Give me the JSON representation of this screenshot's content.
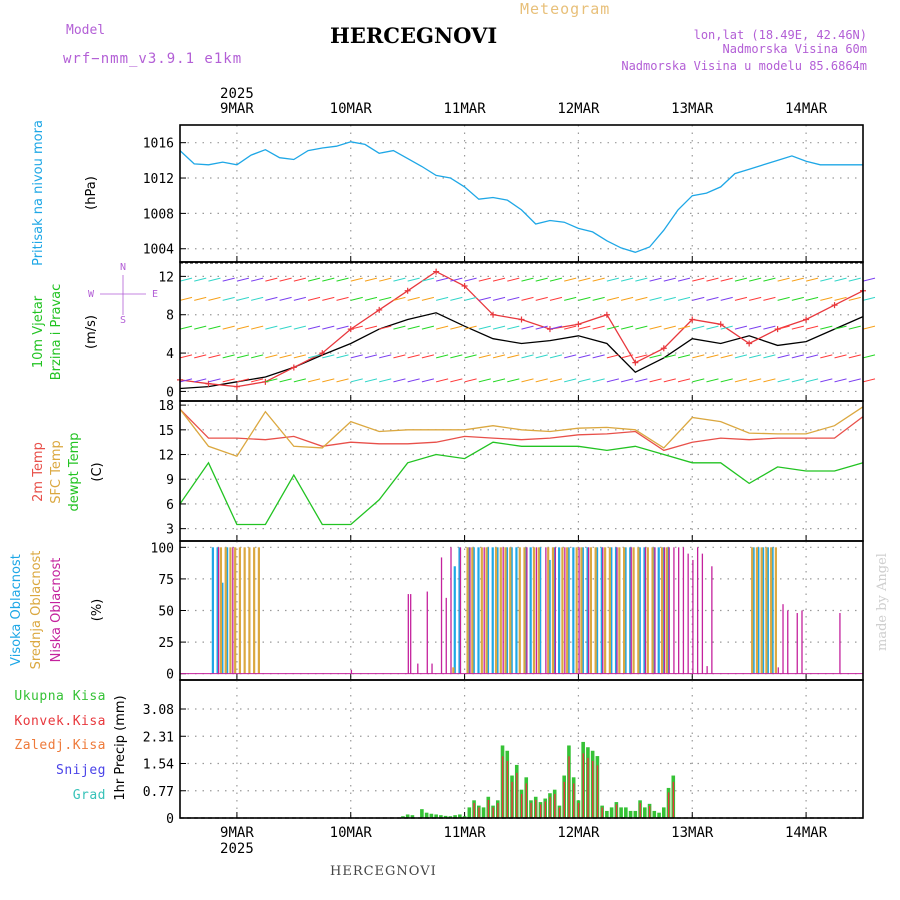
{
  "header": {
    "title": "HERCEGNOVI",
    "subtitle": "Meteogram",
    "model_label": "Model",
    "model_name": "wrf−nmm_v3.9.1 e1km",
    "lonlat": "lon,lat (18.49E, 42.46N)",
    "altitude": "Nadmorska Visina 60m",
    "model_altitude": "Nadmorska Visina u modelu 85.6864m",
    "watermark": "made by Angel",
    "footer_station": "HERCEGNOVI"
  },
  "colors": {
    "pressure": "#1ea7e6",
    "wind_speed": "#000000",
    "gust": "#e8383d",
    "temp2m": "#e8504a",
    "sfc": "#dba840",
    "dew": "#22c322",
    "cloud_high": "#1ea7e6",
    "cloud_mid": "#dba840",
    "cloud_low": "#c4229d",
    "precip_total": "#36c236",
    "precip_conv": "#e8383d",
    "title_yellow": "#e8c07a",
    "model_purple": "#b35fd6"
  },
  "chart_data": [
    {
      "type": "line",
      "name": "pressure-panel",
      "title": "",
      "ylabel_lines": [
        "Pritisak na nivou mora"
      ],
      "unit": "(hPa)",
      "x_start_hours": 0,
      "x_end_hours": 144,
      "ylim": [
        1002.5,
        1018
      ],
      "yticks": [
        1004,
        1008,
        1012,
        1016
      ],
      "grid": true,
      "series": [
        {
          "name": "",
          "hours": [
            0,
            3,
            6,
            9,
            12,
            15,
            18,
            21,
            24,
            27,
            30,
            33,
            36,
            39,
            42,
            45,
            48,
            51,
            54,
            57,
            60,
            63,
            66,
            69,
            72,
            75,
            78,
            81,
            84,
            87,
            90,
            93,
            96,
            99,
            102,
            105,
            108,
            111,
            114,
            117,
            120,
            123,
            126,
            129,
            132,
            135,
            138,
            141,
            144
          ],
          "values": [
            1015.1,
            1013.6,
            1013.5,
            1013.8,
            1013.5,
            1014.6,
            1015.2,
            1014.3,
            1014.1,
            1015.1,
            1015.4,
            1015.6,
            1016.1,
            1015.8,
            1014.8,
            1015.1,
            1014.2,
            1013.3,
            1012.3,
            1012.0,
            1011.0,
            1009.6,
            1009.8,
            1009.5,
            1008.4,
            1006.8,
            1007.2,
            1007.0,
            1006.3,
            1005.9,
            1004.9,
            1004.1,
            1003.6,
            1004.2,
            1006.1,
            1008.4,
            1010.0,
            1010.3,
            1011.0,
            1012.5,
            1013.0,
            1013.5,
            1014.0,
            1014.5,
            1013.9,
            1013.5,
            1013.5,
            1013.5,
            1013.5
          ]
        }
      ]
    },
    {
      "type": "line",
      "name": "wind-panel",
      "title": "",
      "ylabel_lines": [
        "10m Vjetar",
        "Brzina i Pravac"
      ],
      "unit": "(m/s)",
      "compass": {
        "n": "N",
        "s": "S",
        "e": "E",
        "w": "W"
      },
      "x_start_hours": 0,
      "x_end_hours": 144,
      "ylim": [
        -1,
        13.5
      ],
      "yticks": [
        0,
        4,
        8,
        12
      ],
      "grid": true,
      "series": [
        {
          "name": "",
          "hours": [
            0,
            6,
            12,
            18,
            24,
            30,
            36,
            42,
            48,
            54,
            60,
            66,
            72,
            78,
            84,
            90,
            96,
            102,
            108,
            114,
            120,
            126,
            132,
            138,
            144
          ],
          "values": [
            0.3,
            0.5,
            1.0,
            1.5,
            2.5,
            3.8,
            5.0,
            6.5,
            7.5,
            8.2,
            6.8,
            5.5,
            5.0,
            5.3,
            5.8,
            5.0,
            2.0,
            3.5,
            5.5,
            5.0,
            5.8,
            4.8,
            5.2,
            6.5,
            7.8
          ]
        },
        {
          "name": "",
          "hours": [
            0,
            6,
            12,
            18,
            24,
            30,
            36,
            42,
            48,
            54,
            60,
            66,
            72,
            78,
            84,
            90,
            96,
            102,
            108,
            114,
            120,
            126,
            132,
            138,
            144
          ],
          "values": [
            1.2,
            0.8,
            0.5,
            1.0,
            2.5,
            4.0,
            6.5,
            8.5,
            10.5,
            12.5,
            11.0,
            8.0,
            7.5,
            6.5,
            7.0,
            8.0,
            3.0,
            4.5,
            7.5,
            7.0,
            5.0,
            6.5,
            7.5,
            9.0,
            10.5
          ]
        }
      ]
    },
    {
      "type": "line",
      "name": "temp-panel",
      "title": "",
      "ylabel_lines": [
        "2m Temp",
        "SFC Temp",
        "dewpt Temp"
      ],
      "unit": "(C)",
      "x_start_hours": 0,
      "x_end_hours": 144,
      "ylim": [
        1.5,
        18.5
      ],
      "yticks": [
        3,
        6,
        9,
        12,
        15,
        18
      ],
      "grid": true,
      "series": [
        {
          "name": "",
          "hours": [
            0,
            6,
            12,
            18,
            24,
            30,
            36,
            42,
            48,
            54,
            60,
            66,
            72,
            78,
            84,
            90,
            96,
            102,
            108,
            114,
            120,
            126,
            132,
            138,
            144
          ],
          "values": [
            17.5,
            14.0,
            14.0,
            13.8,
            14.2,
            13.0,
            13.5,
            13.3,
            13.3,
            13.5,
            14.2,
            14.0,
            13.8,
            14.0,
            14.4,
            14.5,
            14.8,
            12.5,
            13.5,
            14.0,
            13.8,
            14.0,
            14.0,
            14.0,
            16.6
          ]
        },
        {
          "name": "",
          "hours": [
            0,
            6,
            12,
            18,
            24,
            30,
            36,
            42,
            48,
            54,
            60,
            66,
            72,
            78,
            84,
            90,
            96,
            102,
            108,
            114,
            120,
            126,
            132,
            138,
            144
          ],
          "values": [
            17.5,
            13.0,
            11.8,
            17.2,
            13.0,
            12.8,
            16.0,
            14.8,
            15.0,
            15.0,
            15.0,
            15.5,
            15.0,
            14.8,
            15.2,
            15.3,
            15.0,
            12.8,
            16.5,
            16.0,
            14.6,
            14.5,
            14.5,
            15.5,
            17.8
          ]
        },
        {
          "name": "",
          "hours": [
            0,
            6,
            12,
            18,
            24,
            30,
            36,
            42,
            48,
            54,
            60,
            66,
            72,
            78,
            84,
            90,
            96,
            102,
            108,
            114,
            120,
            126,
            132,
            138,
            144
          ],
          "values": [
            6.0,
            11.0,
            3.5,
            3.5,
            9.5,
            3.5,
            3.5,
            6.5,
            11.0,
            12.0,
            11.5,
            13.5,
            13.0,
            13.0,
            13.0,
            12.5,
            13.0,
            12.0,
            11.0,
            11.0,
            8.5,
            10.5,
            10.0,
            10.0,
            11.0
          ]
        }
      ]
    },
    {
      "type": "bar",
      "name": "cloud-panel",
      "title": "",
      "ylabel_lines": [
        "Visoka Oblacnost",
        "Srednja Oblacnost",
        "Niska Oblacnost"
      ],
      "unit": "(%)",
      "x_start_hours": 0,
      "x_end_hours": 144,
      "ylim": [
        -5,
        105
      ],
      "yticks": [
        0,
        25,
        50,
        75,
        100
      ],
      "grid": true,
      "series": [
        {
          "name": "",
          "hours": [
            7,
            8,
            9,
            10,
            12,
            58,
            59,
            61,
            62,
            63,
            65,
            66,
            67,
            69,
            70,
            71,
            73,
            74,
            76,
            78,
            79,
            80,
            82,
            83,
            85,
            86,
            88,
            89,
            91,
            92,
            94,
            95,
            97,
            98,
            100,
            101,
            102,
            103,
            121,
            122,
            123,
            124,
            125
          ],
          "values": [
            100,
            100,
            72,
            100,
            0,
            85,
            100,
            100,
            100,
            100,
            100,
            100,
            100,
            100,
            100,
            100,
            100,
            100,
            100,
            90,
            100,
            100,
            100,
            100,
            100,
            100,
            100,
            100,
            100,
            100,
            100,
            100,
            100,
            100,
            100,
            100,
            100,
            100,
            100,
            100,
            100,
            100,
            100
          ]
        },
        {
          "name": "",
          "hours": [
            8,
            9,
            10,
            11,
            12,
            13,
            14,
            15,
            16,
            57,
            60,
            61,
            63,
            64,
            66,
            67,
            68,
            69,
            71,
            72,
            74,
            75,
            77,
            78,
            80,
            81,
            83,
            84,
            86,
            87,
            89,
            90,
            92,
            93,
            95,
            96,
            98,
            99,
            101,
            102,
            120,
            121,
            122,
            123,
            124,
            125
          ],
          "values": [
            100,
            100,
            100,
            100,
            100,
            100,
            100,
            100,
            100,
            5,
            100,
            100,
            100,
            100,
            100,
            100,
            100,
            100,
            100,
            100,
            100,
            100,
            100,
            100,
            100,
            100,
            100,
            100,
            100,
            100,
            100,
            100,
            100,
            100,
            100,
            100,
            100,
            100,
            100,
            100,
            100,
            100,
            100,
            100,
            100,
            100
          ]
        },
        {
          "name": "",
          "hours": [
            8,
            11,
            36,
            48,
            48.5,
            50,
            52,
            53,
            55,
            56,
            57,
            59,
            61,
            64,
            68,
            73,
            75,
            77,
            79,
            81,
            84,
            86,
            89,
            92,
            95,
            98,
            100,
            102,
            103,
            104,
            105,
            106,
            107,
            108,
            109,
            110,
            111,
            112,
            126,
            127,
            128,
            130,
            131,
            132,
            139
          ],
          "values": [
            100,
            100,
            3,
            63,
            63,
            8,
            65,
            8,
            92,
            60,
            100,
            100,
            100,
            100,
            100,
            100,
            100,
            100,
            100,
            100,
            100,
            100,
            100,
            100,
            100,
            100,
            100,
            100,
            100,
            100,
            100,
            100,
            95,
            90,
            100,
            95,
            6,
            85,
            5,
            55,
            50,
            48,
            50,
            0,
            48
          ]
        }
      ]
    },
    {
      "type": "bar",
      "name": "precip-panel",
      "title": "",
      "ylabel_lines": [
        "1hr Precip (mm)"
      ],
      "unit": "",
      "legend_labels": [
        "Ukupna Kisa",
        "Konvek.Kisa",
        "Zaledj.Kisa",
        "Snijeg",
        "Grad"
      ],
      "x_start_hours": 0,
      "x_end_hours": 144,
      "ylim": [
        0,
        3.9
      ],
      "yticks": [
        0,
        0.77,
        1.54,
        2.31,
        3.08
      ],
      "ytick_labels": [
        "0",
        "0.77",
        "1.54",
        "2.31",
        "3.08"
      ],
      "grid": true,
      "series": [
        {
          "name": "",
          "hours": [
            47,
            48,
            49,
            51,
            52,
            53,
            54,
            55,
            56,
            57,
            58,
            59,
            60,
            61,
            62,
            63,
            64,
            65,
            66,
            67,
            68,
            69,
            70,
            71,
            72,
            73,
            74,
            75,
            76,
            77,
            78,
            79,
            80,
            81,
            82,
            83,
            84,
            85,
            86,
            87,
            88,
            89,
            90,
            91,
            92,
            93,
            94,
            95,
            96,
            97,
            98,
            99,
            100,
            101,
            102,
            103,
            104
          ],
          "values": [
            0.05,
            0.1,
            0.08,
            0.25,
            0.15,
            0.12,
            0.1,
            0.08,
            0.06,
            0.05,
            0.08,
            0.1,
            0.05,
            0.3,
            0.5,
            0.35,
            0.3,
            0.6,
            0.35,
            0.5,
            2.05,
            1.9,
            1.2,
            1.5,
            0.8,
            1.15,
            0.5,
            0.6,
            0.45,
            0.55,
            0.7,
            0.8,
            0.35,
            1.2,
            2.05,
            1.15,
            0.5,
            2.15,
            2.0,
            1.9,
            1.75,
            0.35,
            0.2,
            0.3,
            0.45,
            0.3,
            0.3,
            0.2,
            0.2,
            0.5,
            0.3,
            0.4,
            0.2,
            0.15,
            0.3,
            0.85,
            1.2
          ]
        }
      ]
    }
  ],
  "x_axis": {
    "year": "2025",
    "dates": [
      "9MAR",
      "10MAR",
      "11MAR",
      "12MAR",
      "13MAR",
      "14MAR"
    ],
    "date_hours": [
      12,
      36,
      60,
      84,
      108,
      132
    ]
  }
}
